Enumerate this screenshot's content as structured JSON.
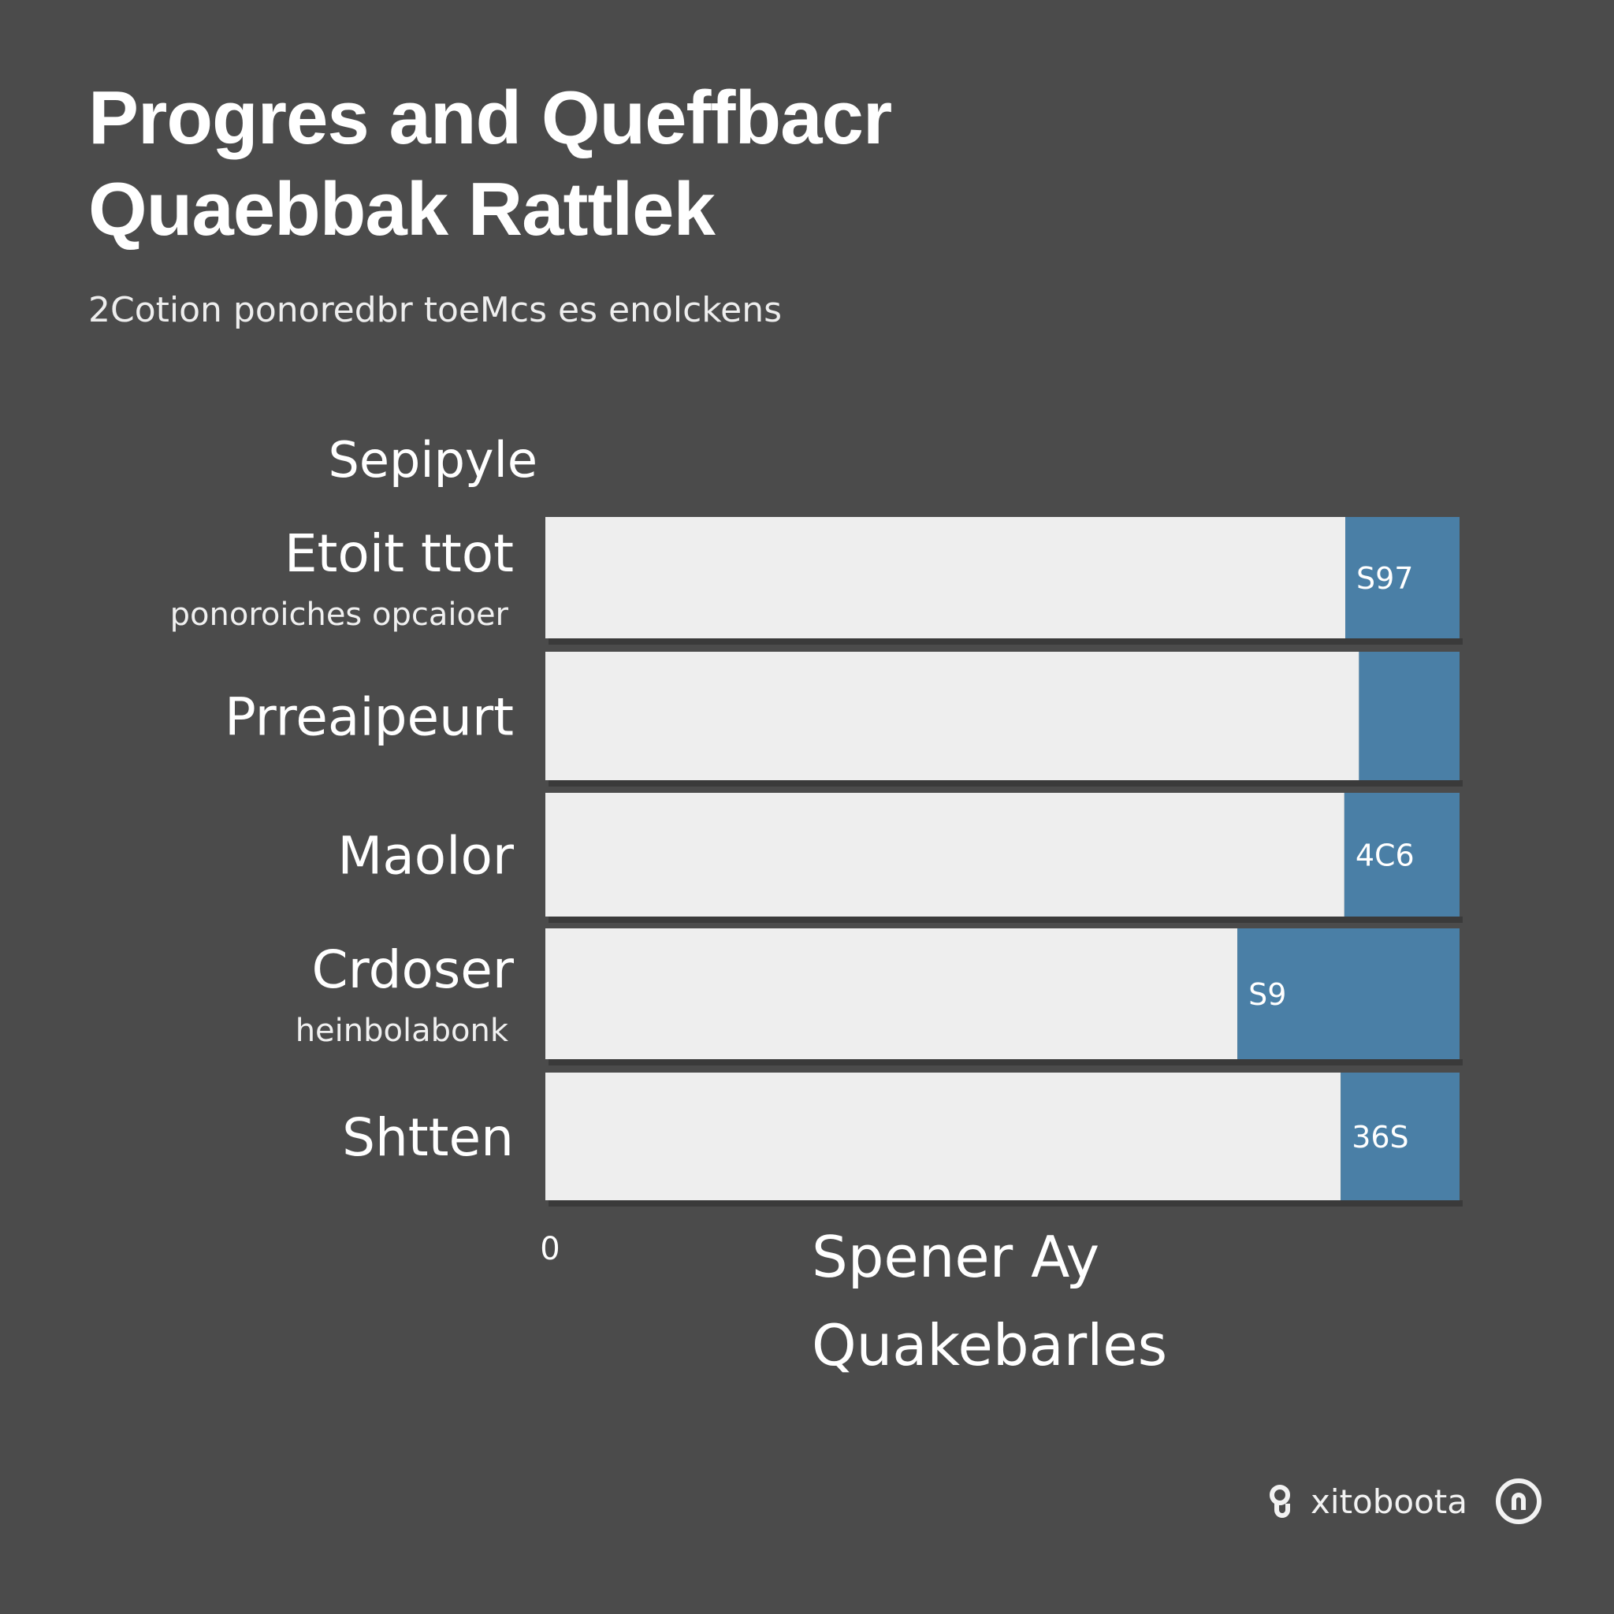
{
  "title_lines": [
    "Progres and Queffbacr",
    "Quaebbak Rattlek"
  ],
  "subtitle": "2Cotion ponoredbr toeMcs es enolckens",
  "footer": {
    "brand": "xitoboota"
  },
  "colors": {
    "background": "#4b4b4b",
    "track": "#eeeeee",
    "accent": "#4a7fa6",
    "text": "#ffffff"
  },
  "chart_data": {
    "type": "bar",
    "orientation": "horizontal",
    "stacked": true,
    "header_label": "Sepipyle",
    "categories": [
      {
        "name": "Etoit ttot",
        "sub": "ponoroiches opcaioer",
        "label": "S97"
      },
      {
        "name": "Prreaipeurt",
        "sub": "",
        "label": ""
      },
      {
        "name": "Maolor",
        "sub": "",
        "label": "4C6"
      },
      {
        "name": "Crdoser",
        "sub": "heinbolabonk",
        "label": "S9"
      },
      {
        "name": "Shtten",
        "sub": "",
        "label": "36S"
      }
    ],
    "series": [
      {
        "values": [
          87.5,
          89.0,
          87.4,
          75.7,
          87.0
        ],
        "color": "#eeeeee"
      },
      {
        "values": [
          12.5,
          11.0,
          12.6,
          24.3,
          13.0
        ],
        "color": "#4a7fa6"
      }
    ],
    "xlim": [
      0,
      100
    ],
    "x_tick_labels": [
      "0"
    ],
    "xlabel": "Spener Ay Quakebarles"
  }
}
